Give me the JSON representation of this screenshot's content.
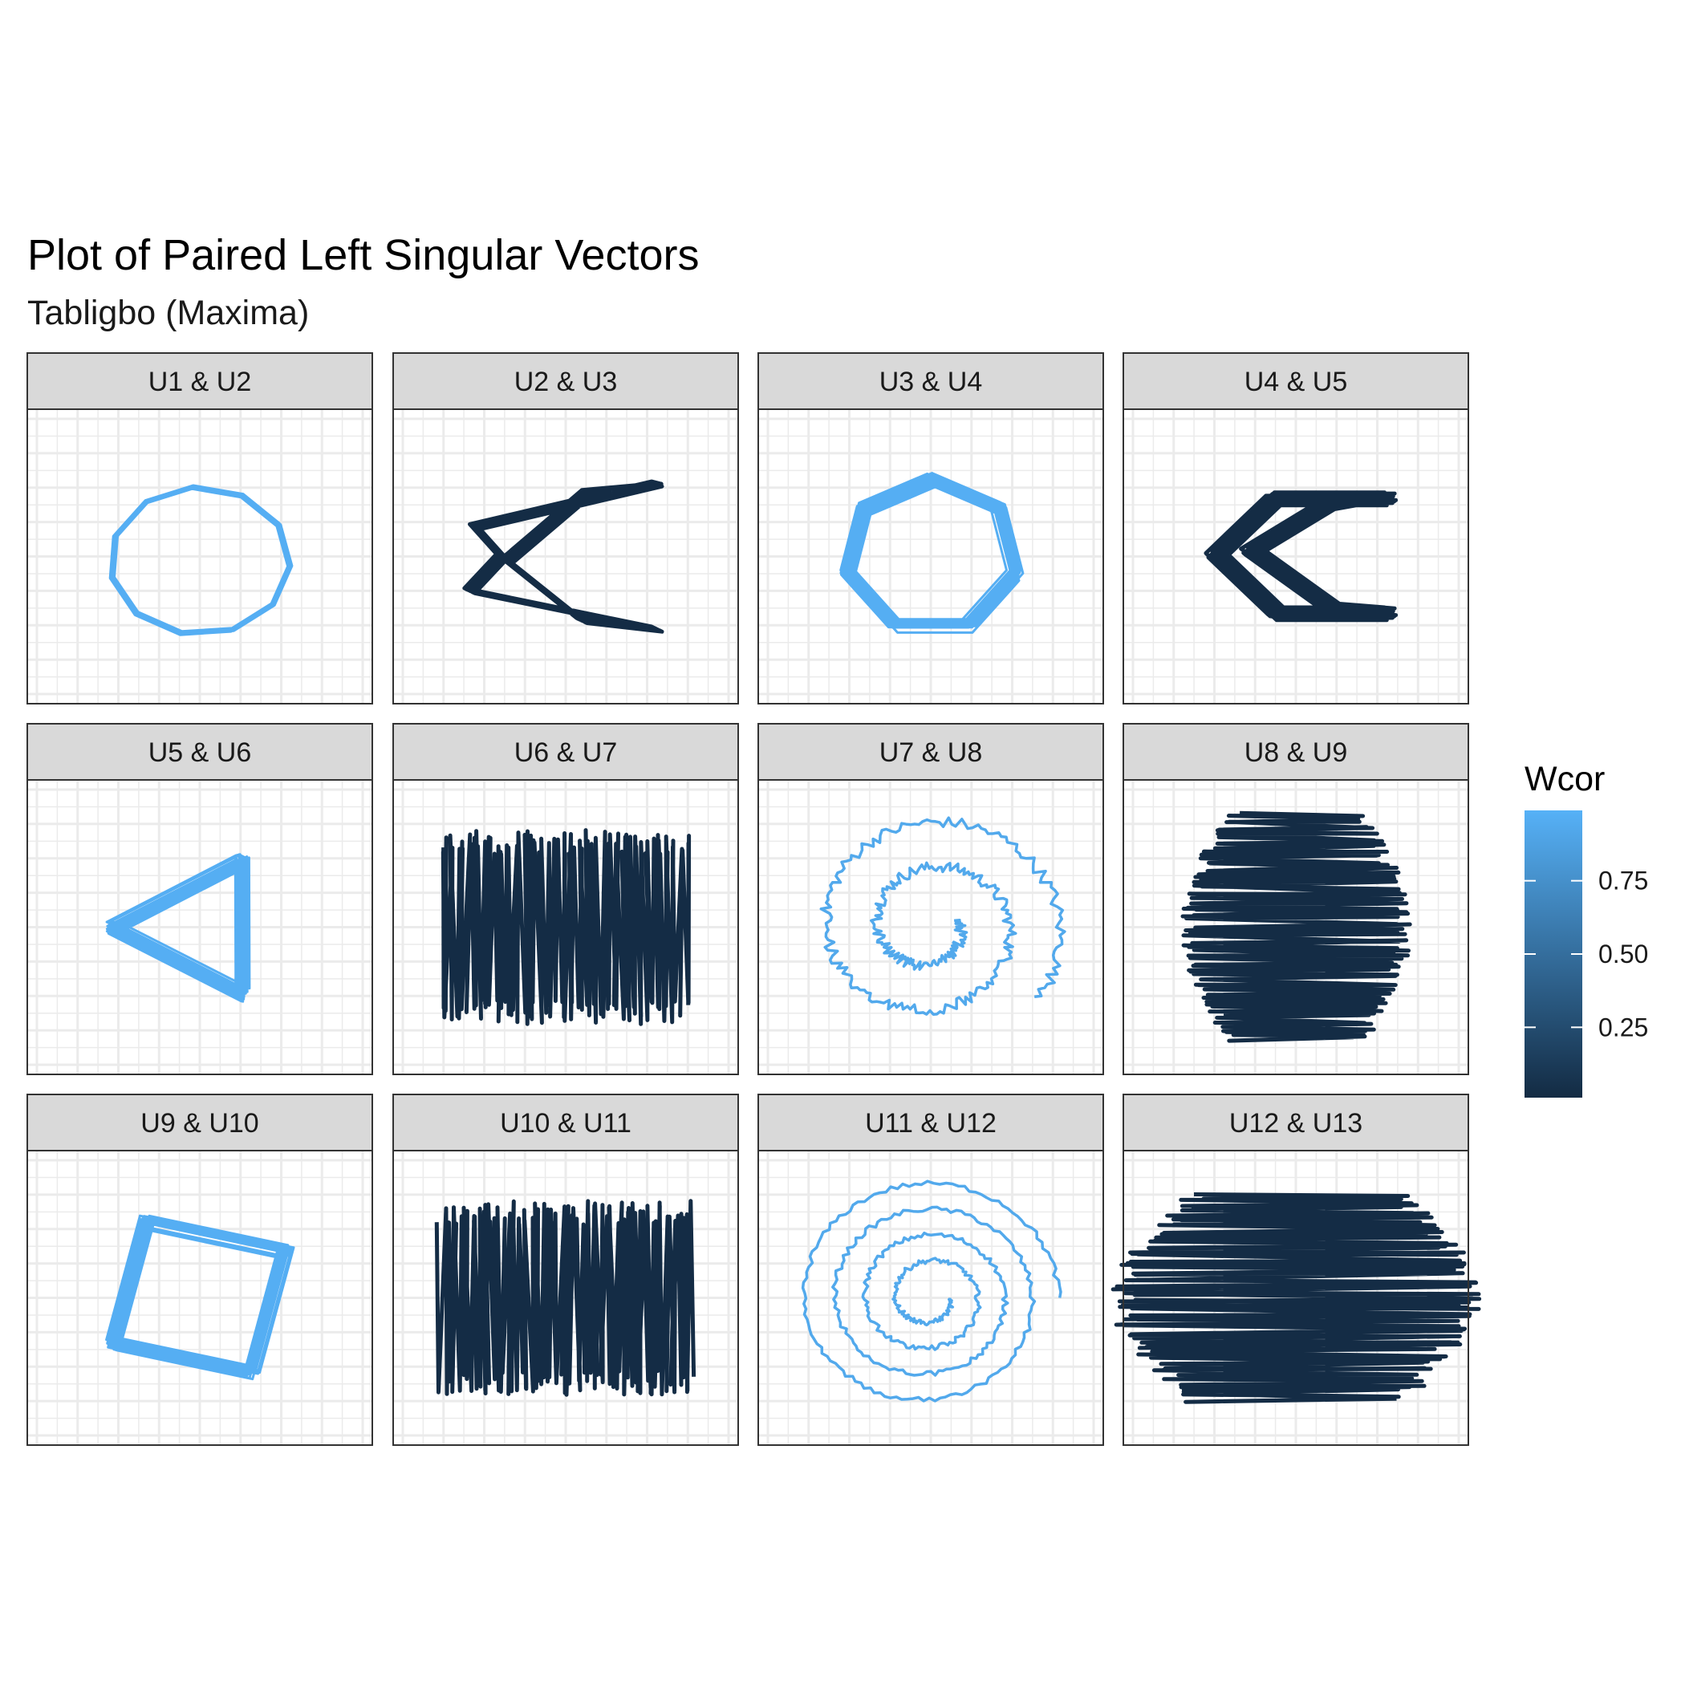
{
  "chart_data": {
    "type": "line",
    "title": "Plot of Paired Left Singular Vectors",
    "subtitle": "Tabligbo (Maxima)",
    "layout": "facet-grid-3x4",
    "grid": true,
    "panels": [
      {
        "label": "U1  &  U2",
        "wcor": 0.97,
        "shape": "polygon",
        "sides": 11
      },
      {
        "label": "U2  &  U3",
        "wcor": 0.02,
        "shape": "chevron"
      },
      {
        "label": "U3  &  U4",
        "wcor": 0.97,
        "shape": "polygon",
        "sides": 7
      },
      {
        "label": "U4  &  U5",
        "wcor": 0.02,
        "shape": "double-chevron"
      },
      {
        "label": "U5  &  U6",
        "wcor": 0.97,
        "shape": "polygon",
        "sides": 3
      },
      {
        "label": "U6  &  U7",
        "wcor": 0.02,
        "shape": "vertical-zigzag"
      },
      {
        "label": "U7  &  U8",
        "wcor": 0.93,
        "shape": "noisy-spiral"
      },
      {
        "label": "U8  &  U9",
        "wcor": 0.02,
        "shape": "horizontal-zigzag"
      },
      {
        "label": "U9  &  U10",
        "wcor": 0.97,
        "shape": "polygon",
        "sides": 4
      },
      {
        "label": "U10  &  U11",
        "wcor": 0.02,
        "shape": "vertical-zigzag"
      },
      {
        "label": "U11  &  U12",
        "wcor": 0.93,
        "shape": "spiral"
      },
      {
        "label": "U12  &  U13",
        "wcor": 0.02,
        "shape": "horizontal-zigzag"
      }
    ],
    "legend": {
      "title": "Wcor",
      "placement": "right",
      "ticks": [
        0.25,
        0.5,
        0.75
      ],
      "tick_labels": [
        "0.25",
        "0.50",
        "0.75"
      ],
      "range": [
        0.01,
        0.99
      ],
      "color_low": "#132B43",
      "color_high": "#56B1F7"
    }
  }
}
